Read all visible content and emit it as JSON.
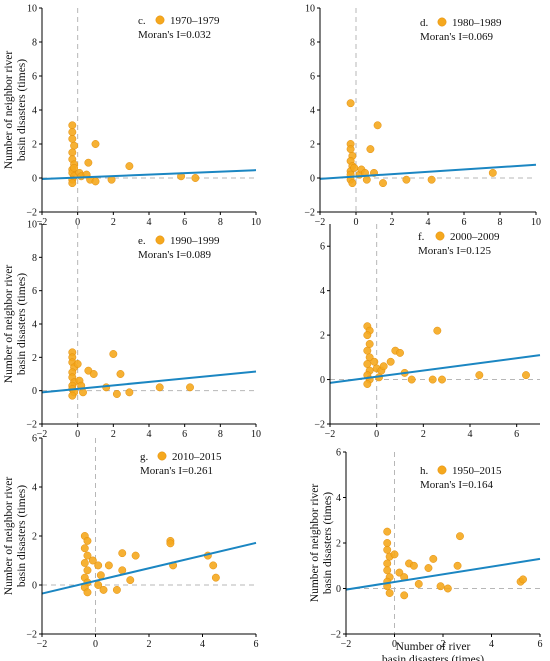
{
  "colors": {
    "point": "#F5A81E",
    "point_stroke": "#E38E0A",
    "fit_line": "#1B86C2",
    "dash": "#b7b7b7",
    "axis": "#000000"
  },
  "chart_data": [
    {
      "type": "scatter",
      "panel_label": "c.",
      "legend": "1970–1979",
      "moran": "Moran's I=0.032",
      "ylabel": [
        "Number of neighbor river",
        "basin disasters (times)"
      ],
      "xlabel": [],
      "xlim": [
        -2,
        10
      ],
      "ylim": [
        -2,
        10
      ],
      "xticks": [
        -2,
        0,
        2,
        4,
        6,
        8,
        10
      ],
      "yticks": [
        -2,
        0,
        2,
        4,
        6,
        8,
        10
      ],
      "fit": [
        [
          -2,
          -0.06
        ],
        [
          10,
          0.46
        ]
      ],
      "points": [
        [
          -0.3,
          3.1
        ],
        [
          -0.3,
          2.7
        ],
        [
          -0.3,
          2.3
        ],
        [
          -0.2,
          1.9
        ],
        [
          -0.3,
          1.5
        ],
        [
          -0.3,
          1.1
        ],
        [
          -0.2,
          0.8
        ],
        [
          -0.3,
          0.5
        ],
        [
          -0.3,
          0.3
        ],
        [
          -0.2,
          0.1
        ],
        [
          -0.3,
          -0.1
        ],
        [
          -0.3,
          -0.3
        ],
        [
          -0.2,
          0.6
        ],
        [
          0.1,
          0.3
        ],
        [
          0.2,
          0.1
        ],
        [
          0.6,
          0.9
        ],
        [
          1.0,
          2.0
        ],
        [
          0.5,
          0.2
        ],
        [
          0.7,
          -0.1
        ],
        [
          1.0,
          -0.2
        ],
        [
          1.9,
          -0.1
        ],
        [
          2.9,
          0.7
        ],
        [
          5.8,
          0.1
        ],
        [
          6.6,
          0.0
        ]
      ]
    },
    {
      "type": "scatter",
      "panel_label": "d.",
      "legend": "1980–1989",
      "moran": "Moran's I=0.069",
      "ylabel": [],
      "xlabel": [],
      "xlim": [
        -2,
        10
      ],
      "ylim": [
        -2,
        10
      ],
      "xticks": [
        -2,
        0,
        2,
        4,
        6,
        8,
        10
      ],
      "yticks": [
        -2,
        0,
        2,
        4,
        6,
        8,
        10
      ],
      "fit": [
        [
          -2,
          -0.05
        ],
        [
          10,
          0.78
        ]
      ],
      "points": [
        [
          -0.3,
          4.4
        ],
        [
          -0.3,
          2.0
        ],
        [
          -0.3,
          1.7
        ],
        [
          -0.2,
          1.3
        ],
        [
          -0.3,
          1.0
        ],
        [
          -0.2,
          0.7
        ],
        [
          -0.3,
          0.4
        ],
        [
          -0.3,
          0.2
        ],
        [
          -0.3,
          -0.1
        ],
        [
          -0.2,
          -0.3
        ],
        [
          -0.1,
          0.6
        ],
        [
          0.2,
          0.2
        ],
        [
          0.3,
          0.5
        ],
        [
          0.5,
          0.3
        ],
        [
          0.8,
          1.7
        ],
        [
          1.2,
          3.1
        ],
        [
          1.0,
          0.3
        ],
        [
          0.6,
          -0.1
        ],
        [
          1.5,
          -0.3
        ],
        [
          2.8,
          -0.1
        ],
        [
          4.2,
          -0.1
        ],
        [
          7.6,
          0.3
        ]
      ]
    },
    {
      "type": "scatter",
      "panel_label": "e.",
      "legend": "1990–1999",
      "moran": "Moran's I=0.089",
      "ylabel": [
        "Number of neighbor river",
        "basin disasters (times)"
      ],
      "xlabel": [],
      "xlim": [
        -2,
        10
      ],
      "ylim": [
        -2,
        10
      ],
      "xticks": [
        -2,
        0,
        2,
        4,
        6,
        8,
        10
      ],
      "yticks": [
        -2,
        0,
        2,
        4,
        6,
        8,
        10
      ],
      "fit": [
        [
          -2,
          -0.1
        ],
        [
          10,
          1.15
        ]
      ],
      "points": [
        [
          -0.3,
          2.3
        ],
        [
          -0.3,
          2.0
        ],
        [
          -0.3,
          1.7
        ],
        [
          -0.2,
          1.4
        ],
        [
          -0.3,
          1.1
        ],
        [
          -0.3,
          0.8
        ],
        [
          -0.2,
          0.5
        ],
        [
          -0.3,
          0.3
        ],
        [
          -0.3,
          0.1
        ],
        [
          -0.2,
          -0.1
        ],
        [
          -0.3,
          -0.3
        ],
        [
          0.0,
          1.6
        ],
        [
          0.1,
          0.6
        ],
        [
          0.2,
          0.3
        ],
        [
          0.3,
          -0.1
        ],
        [
          0.6,
          1.2
        ],
        [
          0.9,
          1.0
        ],
        [
          1.6,
          0.2
        ],
        [
          2.0,
          2.2
        ],
        [
          2.2,
          -0.2
        ],
        [
          2.4,
          1.0
        ],
        [
          2.9,
          -0.1
        ],
        [
          4.6,
          0.2
        ],
        [
          6.3,
          0.2
        ]
      ]
    },
    {
      "type": "scatter",
      "panel_label": "f.",
      "legend": "2000–2009",
      "moran": "Moran's I=0.125",
      "ylabel": [],
      "xlabel": [],
      "xlim": [
        -2,
        7
      ],
      "ylim": [
        -2,
        7
      ],
      "xticks": [
        -2,
        0,
        2,
        4,
        6
      ],
      "yticks": [
        -2,
        0,
        2,
        4,
        6
      ],
      "fit": [
        [
          -2,
          -0.15
        ],
        [
          7,
          1.1
        ]
      ],
      "points": [
        [
          -0.4,
          2.4
        ],
        [
          -0.3,
          2.2
        ],
        [
          -0.4,
          2.0
        ],
        [
          -0.3,
          1.6
        ],
        [
          -0.4,
          1.3
        ],
        [
          -0.3,
          1.0
        ],
        [
          -0.4,
          0.7
        ],
        [
          -0.3,
          0.4
        ],
        [
          -0.4,
          0.2
        ],
        [
          -0.3,
          0.0
        ],
        [
          -0.4,
          -0.2
        ],
        [
          -0.1,
          0.8
        ],
        [
          0.0,
          0.5
        ],
        [
          0.2,
          0.4
        ],
        [
          0.1,
          0.1
        ],
        [
          0.3,
          0.6
        ],
        [
          0.6,
          0.8
        ],
        [
          0.8,
          1.3
        ],
        [
          1.0,
          1.2
        ],
        [
          1.2,
          0.3
        ],
        [
          1.5,
          0.0
        ],
        [
          2.4,
          0.0
        ],
        [
          2.6,
          2.2
        ],
        [
          2.8,
          0.0
        ],
        [
          4.4,
          0.2
        ],
        [
          6.4,
          0.2
        ]
      ]
    },
    {
      "type": "scatter",
      "panel_label": "g.",
      "legend": "2010–2015",
      "moran": "Moran's I=0.261",
      "ylabel": [
        "Number of neighbor river",
        "basin disasters (times)"
      ],
      "xlabel": [],
      "xlim": [
        -2,
        6
      ],
      "ylim": [
        -2,
        6
      ],
      "xticks": [
        -2,
        0,
        2,
        4,
        6
      ],
      "yticks": [
        -2,
        0,
        2,
        4,
        6
      ],
      "fit": [
        [
          -2,
          -0.35
        ],
        [
          6,
          1.72
        ]
      ],
      "points": [
        [
          -0.4,
          2.0
        ],
        [
          -0.3,
          1.8
        ],
        [
          -0.4,
          1.5
        ],
        [
          -0.3,
          1.2
        ],
        [
          -0.4,
          0.9
        ],
        [
          -0.3,
          0.6
        ],
        [
          -0.4,
          0.3
        ],
        [
          -0.3,
          0.1
        ],
        [
          -0.4,
          -0.1
        ],
        [
          -0.3,
          -0.3
        ],
        [
          -0.1,
          1.0
        ],
        [
          0.1,
          0.8
        ],
        [
          0.2,
          0.4
        ],
        [
          0.1,
          0.0
        ],
        [
          0.3,
          -0.2
        ],
        [
          0.5,
          0.8
        ],
        [
          0.8,
          -0.2
        ],
        [
          1.0,
          1.3
        ],
        [
          1.0,
          0.6
        ],
        [
          1.3,
          0.2
        ],
        [
          1.5,
          1.2
        ],
        [
          2.8,
          1.8
        ],
        [
          2.8,
          1.7
        ],
        [
          2.9,
          0.8
        ],
        [
          4.2,
          1.2
        ],
        [
          4.4,
          0.8
        ],
        [
          4.5,
          0.3
        ]
      ]
    },
    {
      "type": "scatter",
      "panel_label": "h.",
      "legend": "1950–2015",
      "moran": "Moran's I=0.164",
      "ylabel": [
        "Number of neighbor river",
        "basin disasters (times)"
      ],
      "xlabel": [
        "Number of river",
        "basin disasters (times)"
      ],
      "xlim": [
        -2,
        6
      ],
      "ylim": [
        -2,
        6
      ],
      "xticks": [
        -2,
        0,
        2,
        4,
        6
      ],
      "yticks": [
        -2,
        0,
        2,
        4,
        6
      ],
      "fit": [
        [
          -2,
          -0.05
        ],
        [
          6,
          1.3
        ]
      ],
      "points": [
        [
          -0.3,
          2.5
        ],
        [
          -0.3,
          2.0
        ],
        [
          -0.3,
          1.7
        ],
        [
          -0.2,
          1.4
        ],
        [
          -0.3,
          1.1
        ],
        [
          -0.3,
          0.8
        ],
        [
          -0.2,
          0.5
        ],
        [
          -0.3,
          0.3
        ],
        [
          -0.3,
          0.1
        ],
        [
          -0.2,
          -0.2
        ],
        [
          0.0,
          1.5
        ],
        [
          0.2,
          0.7
        ],
        [
          0.4,
          0.5
        ],
        [
          0.4,
          -0.3
        ],
        [
          0.6,
          1.1
        ],
        [
          0.8,
          1.0
        ],
        [
          1.0,
          0.2
        ],
        [
          1.4,
          0.9
        ],
        [
          1.6,
          1.3
        ],
        [
          1.9,
          0.1
        ],
        [
          2.6,
          1.0
        ],
        [
          2.7,
          2.3
        ],
        [
          5.2,
          0.3
        ],
        [
          5.3,
          0.4
        ],
        [
          2.2,
          0.0
        ]
      ]
    }
  ]
}
